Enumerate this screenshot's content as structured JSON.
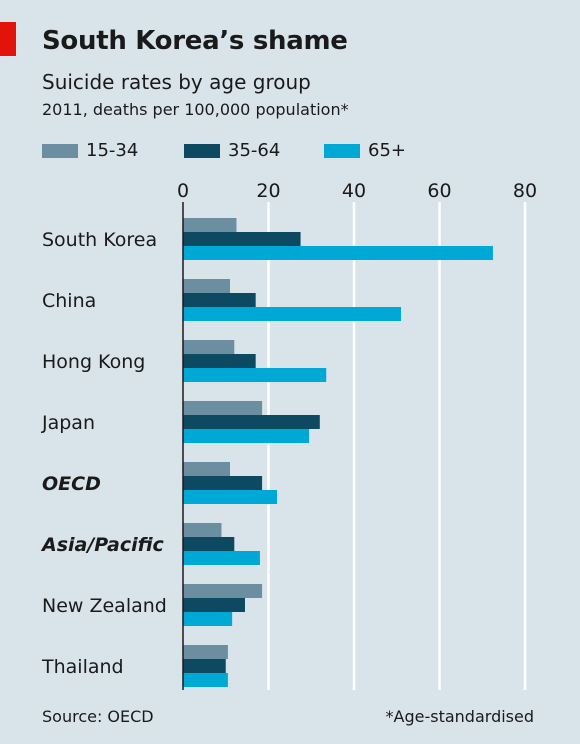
{
  "header": {
    "title": "South Korea’s shame",
    "subtitle": "Suicide rates by age group",
    "note": "2011, deaths per 100,000 population*"
  },
  "footer": {
    "source": "Source: OECD",
    "footnote": "*Age-standardised"
  },
  "colors": {
    "background": "#d9e4ea",
    "accent_red": "#e3120b",
    "series_15_34": "#6b8fa1",
    "series_35_64": "#0d4a62",
    "series_65_plus": "#00a8d6"
  },
  "chart_data": {
    "type": "bar",
    "orientation": "horizontal",
    "categories": [
      "South Korea",
      "China",
      "Hong Kong",
      "Japan",
      "OECD",
      "Asia/Pacific",
      "New Zealand",
      "Thailand"
    ],
    "bold_categories": [
      "OECD",
      "Asia/Pacific"
    ],
    "series": [
      {
        "name": "15-34",
        "color": "#6b8fa1",
        "values": [
          12.5,
          11,
          12,
          18.5,
          11,
          9,
          18.5,
          10.5
        ]
      },
      {
        "name": "35-64",
        "color": "#0d4a62",
        "values": [
          27.5,
          17,
          17,
          32,
          18.5,
          12,
          14.5,
          10
        ]
      },
      {
        "name": "65+",
        "color": "#00a8d6",
        "values": [
          72.5,
          51,
          33.5,
          29.5,
          22,
          18,
          11.5,
          10.5
        ]
      }
    ],
    "xlim": [
      0,
      80
    ],
    "xticks": [
      0,
      20,
      40,
      60,
      80
    ],
    "grid": true,
    "legend_position": "top"
  }
}
